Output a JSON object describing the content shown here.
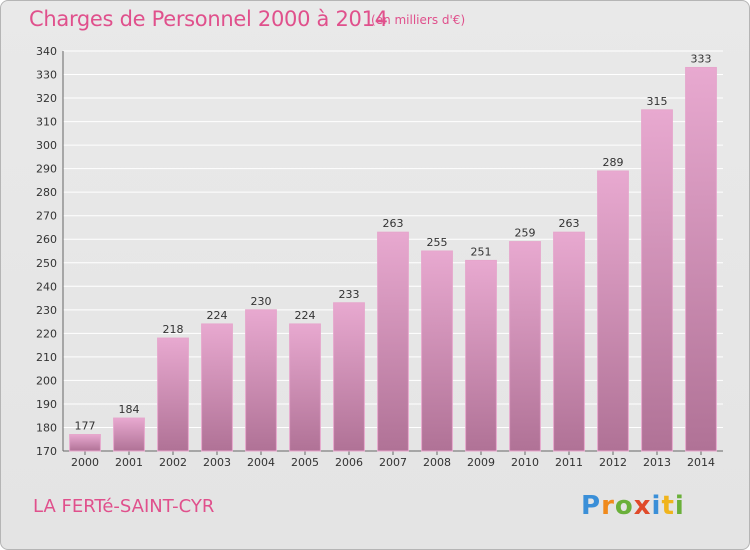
{
  "header": {
    "title": "Charges de Personnel 2000 à 2014",
    "subtitle": "(en milliers d'€)"
  },
  "footer": {
    "location": "LA FERTé-SAINT-CYR",
    "logo": "Proxiti"
  },
  "colors": {
    "bar_top": "#e8a9d0",
    "bar_bottom": "#b07296",
    "bar_edge": "#e6a6cc",
    "title": "#e0508c"
  },
  "chart_data": {
    "type": "bar",
    "categories": [
      "2000",
      "2001",
      "2002",
      "2003",
      "2004",
      "2005",
      "2006",
      "2007",
      "2008",
      "2009",
      "2010",
      "2011",
      "2012",
      "2013",
      "2014"
    ],
    "values": [
      177,
      184,
      218,
      224,
      230,
      224,
      233,
      263,
      255,
      251,
      259,
      263,
      289,
      315,
      333
    ],
    "ylim": [
      170,
      340
    ],
    "yticks": [
      170,
      180,
      190,
      200,
      210,
      220,
      230,
      240,
      250,
      260,
      270,
      280,
      290,
      300,
      310,
      320,
      330,
      340
    ],
    "grid": true
  }
}
